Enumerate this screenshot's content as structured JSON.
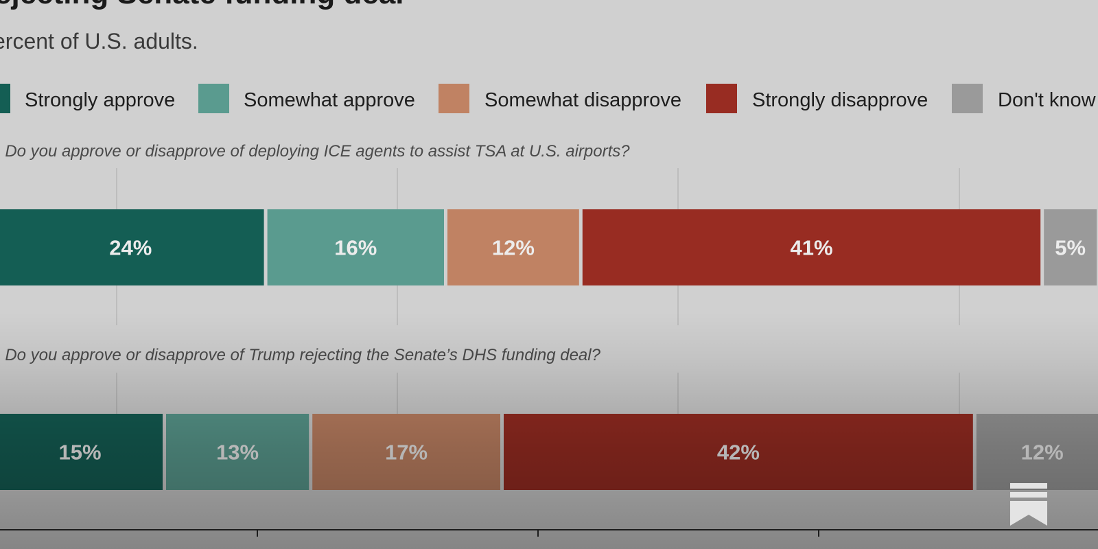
{
  "chart_data": {
    "type": "bar",
    "orientation": "horizontal",
    "stacked": true,
    "title": "ejecting Senate funding deal",
    "subtitle": "ercent of U.S. adults.",
    "legend_position": "top",
    "series": [
      {
        "name": "Strongly approve",
        "color": "#145e54"
      },
      {
        "name": "Somewhat approve",
        "color": "#5a9b8f"
      },
      {
        "name": "Somewhat disapprove",
        "color": "#c08263"
      },
      {
        "name": "Strongly disapprove",
        "color": "#982c22"
      },
      {
        "name": "Don't know",
        "color": "#9a9a9a"
      }
    ],
    "legend_labels": [
      "Strongly approve",
      "Somewhat approve",
      "Somewhat disapprove",
      "Strongly disapprove",
      "Don't know"
    ],
    "questions": [
      {
        "text": ": Do you approve or disapprove of deploying ICE agents to assist TSA at U.S. airports?",
        "values": [
          24,
          16,
          12,
          41,
          5
        ],
        "labels": [
          "24%",
          "16%",
          "12%",
          "41%",
          "5%"
        ]
      },
      {
        "text": ": Do you approve or disapprove of Trump rejecting the Senate’s DHS funding deal?",
        "values": [
          15,
          13,
          17,
          42,
          12
        ],
        "labels": [
          "15%",
          "13%",
          "17%",
          "42%",
          "12%"
        ]
      }
    ],
    "xlim": [
      0,
      100
    ],
    "grid": true
  },
  "icons": {
    "bookmark": "bookmark-icon"
  }
}
